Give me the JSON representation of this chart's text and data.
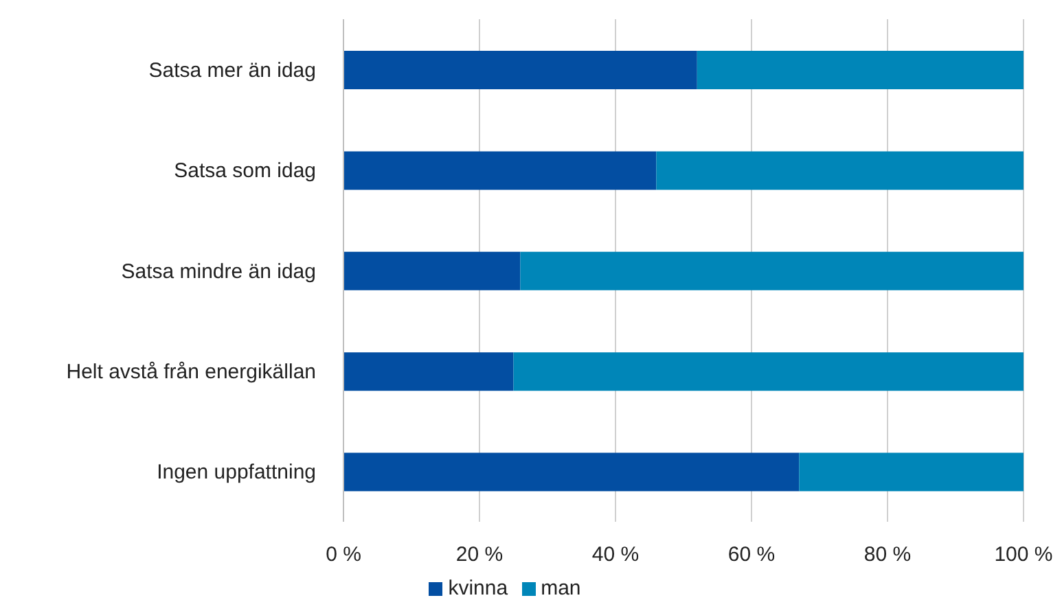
{
  "chart_data": {
    "type": "bar",
    "orientation": "horizontal",
    "stacked": true,
    "categories": [
      "Satsa mer än idag",
      "Satsa som idag",
      "Satsa mindre än idag",
      "Helt avstå från energikällan",
      "Ingen uppfattning"
    ],
    "series": [
      {
        "name": "kvinna",
        "color": "#034ea2",
        "values": [
          52,
          46,
          26,
          25,
          67
        ]
      },
      {
        "name": "man",
        "color": "#0086b8",
        "values": [
          48,
          54,
          74,
          75,
          33
        ]
      }
    ],
    "xlim": [
      0,
      100
    ],
    "xticks": [
      {
        "value": 0,
        "label": "0 %"
      },
      {
        "value": 20,
        "label": "20 %"
      },
      {
        "value": 40,
        "label": "40 %"
      },
      {
        "value": 60,
        "label": "60 %"
      },
      {
        "value": 80,
        "label": "80 %"
      },
      {
        "value": 100,
        "label": "100 %"
      }
    ],
    "grid": "x",
    "legend": "bottom"
  }
}
